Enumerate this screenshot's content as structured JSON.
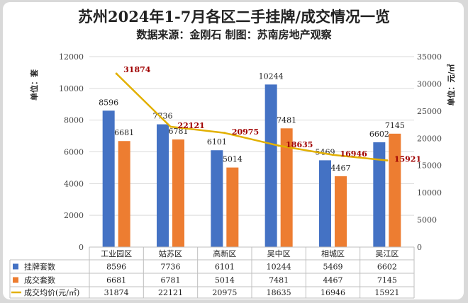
{
  "header": {
    "title": "苏州2024年1-7月各区二手挂牌/成交情况一览",
    "subtitle": "数据来源：金刚石 制图：苏南房地产观察"
  },
  "axis": {
    "left_unit": "单位：套",
    "right_unit": "单位：元/㎡"
  },
  "colors": {
    "listing": "#4472c4",
    "deal": "#ed7d31",
    "avg_price": "#e2b000",
    "price_label": "#a00000"
  },
  "chart_data": {
    "type": "bar",
    "categories": [
      "工业园区",
      "姑苏区",
      "高新区",
      "吴中区",
      "相城区",
      "吴江区"
    ],
    "series": [
      {
        "name": "挂牌套数",
        "type": "bar",
        "axis": "left",
        "values": [
          8596,
          7736,
          6101,
          10244,
          5469,
          6602
        ]
      },
      {
        "name": "成交套数",
        "type": "bar",
        "axis": "left",
        "values": [
          6681,
          6781,
          5014,
          7481,
          4467,
          7145
        ]
      },
      {
        "name": "成交均价(元/㎡)",
        "type": "line",
        "axis": "right",
        "values": [
          31874,
          22121,
          20975,
          18635,
          16946,
          15921
        ]
      }
    ],
    "ylim_left": [
      0,
      12000
    ],
    "yticks_left": [
      0,
      2000,
      4000,
      6000,
      8000,
      10000,
      12000
    ],
    "ylim_right": [
      0,
      35000
    ],
    "yticks_right": [
      0,
      5000,
      10000,
      15000,
      20000,
      25000,
      30000,
      35000
    ],
    "ylabel_left": "单位：套",
    "ylabel_right": "单位：元/㎡",
    "grid": true,
    "legend": "data-table-below"
  }
}
